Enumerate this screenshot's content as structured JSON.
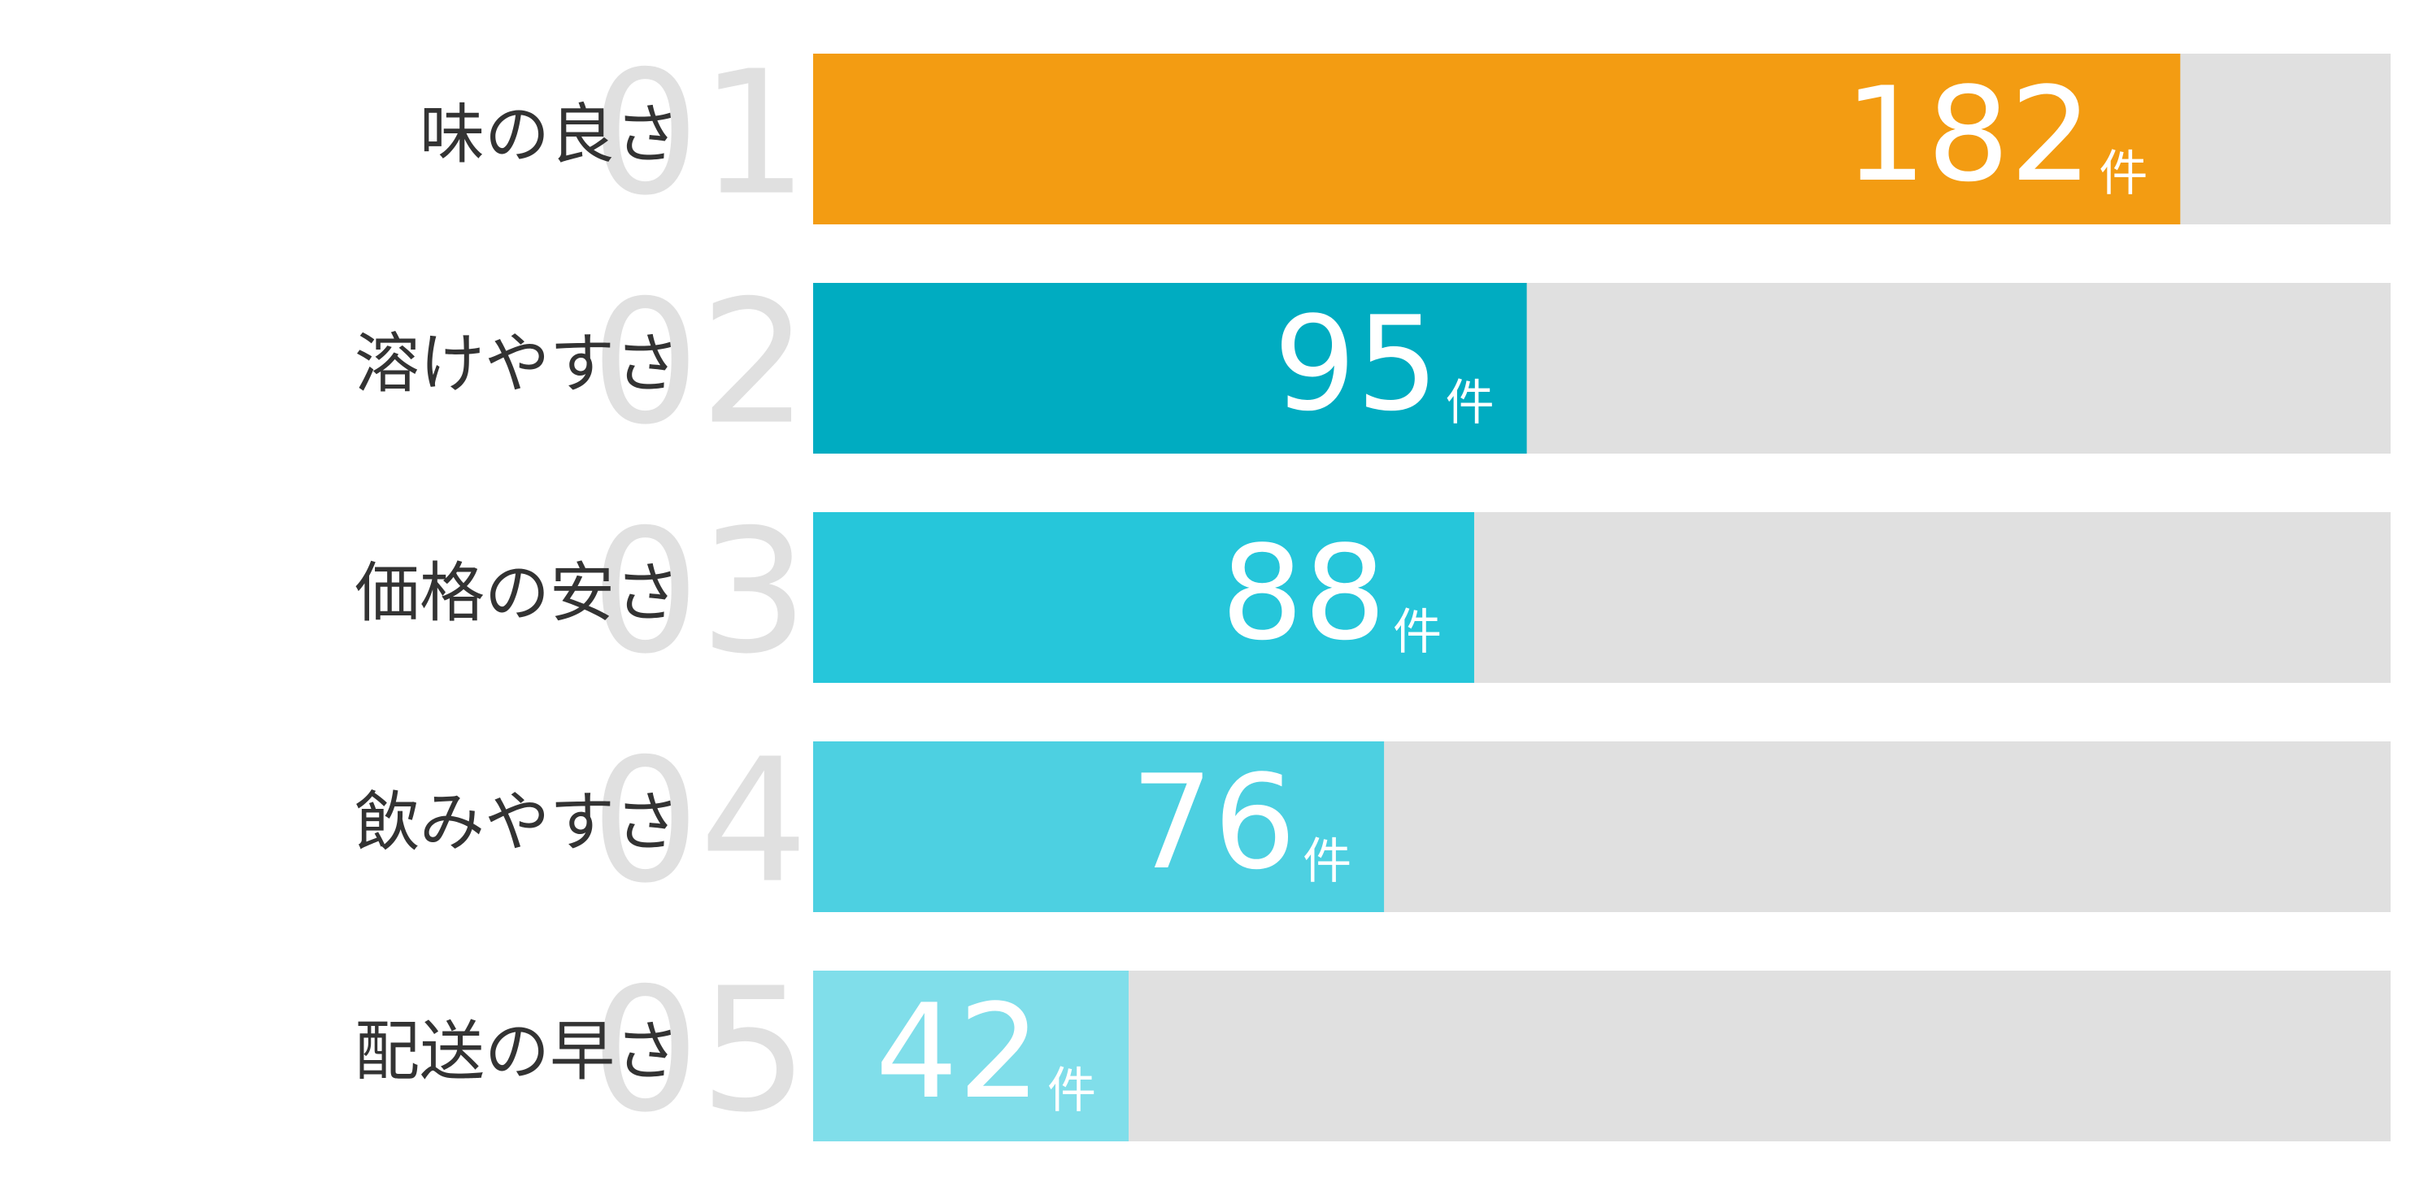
{
  "chart_data": {
    "type": "bar",
    "orientation": "horizontal",
    "ranks": [
      "01",
      "02",
      "03",
      "04",
      "05"
    ],
    "categories": [
      "味の良さ",
      "溶けやすさ",
      "価格の安さ",
      "飲みやすさ",
      "配送の早さ"
    ],
    "values": [
      182,
      95,
      88,
      76,
      42
    ],
    "unit": "件",
    "colors": [
      "#f39c12",
      "#00acc1",
      "#26c6da",
      "#4dd0e1",
      "#80deea"
    ],
    "track_color": "#e0e0e0",
    "xlim": [
      0,
      210
    ]
  }
}
